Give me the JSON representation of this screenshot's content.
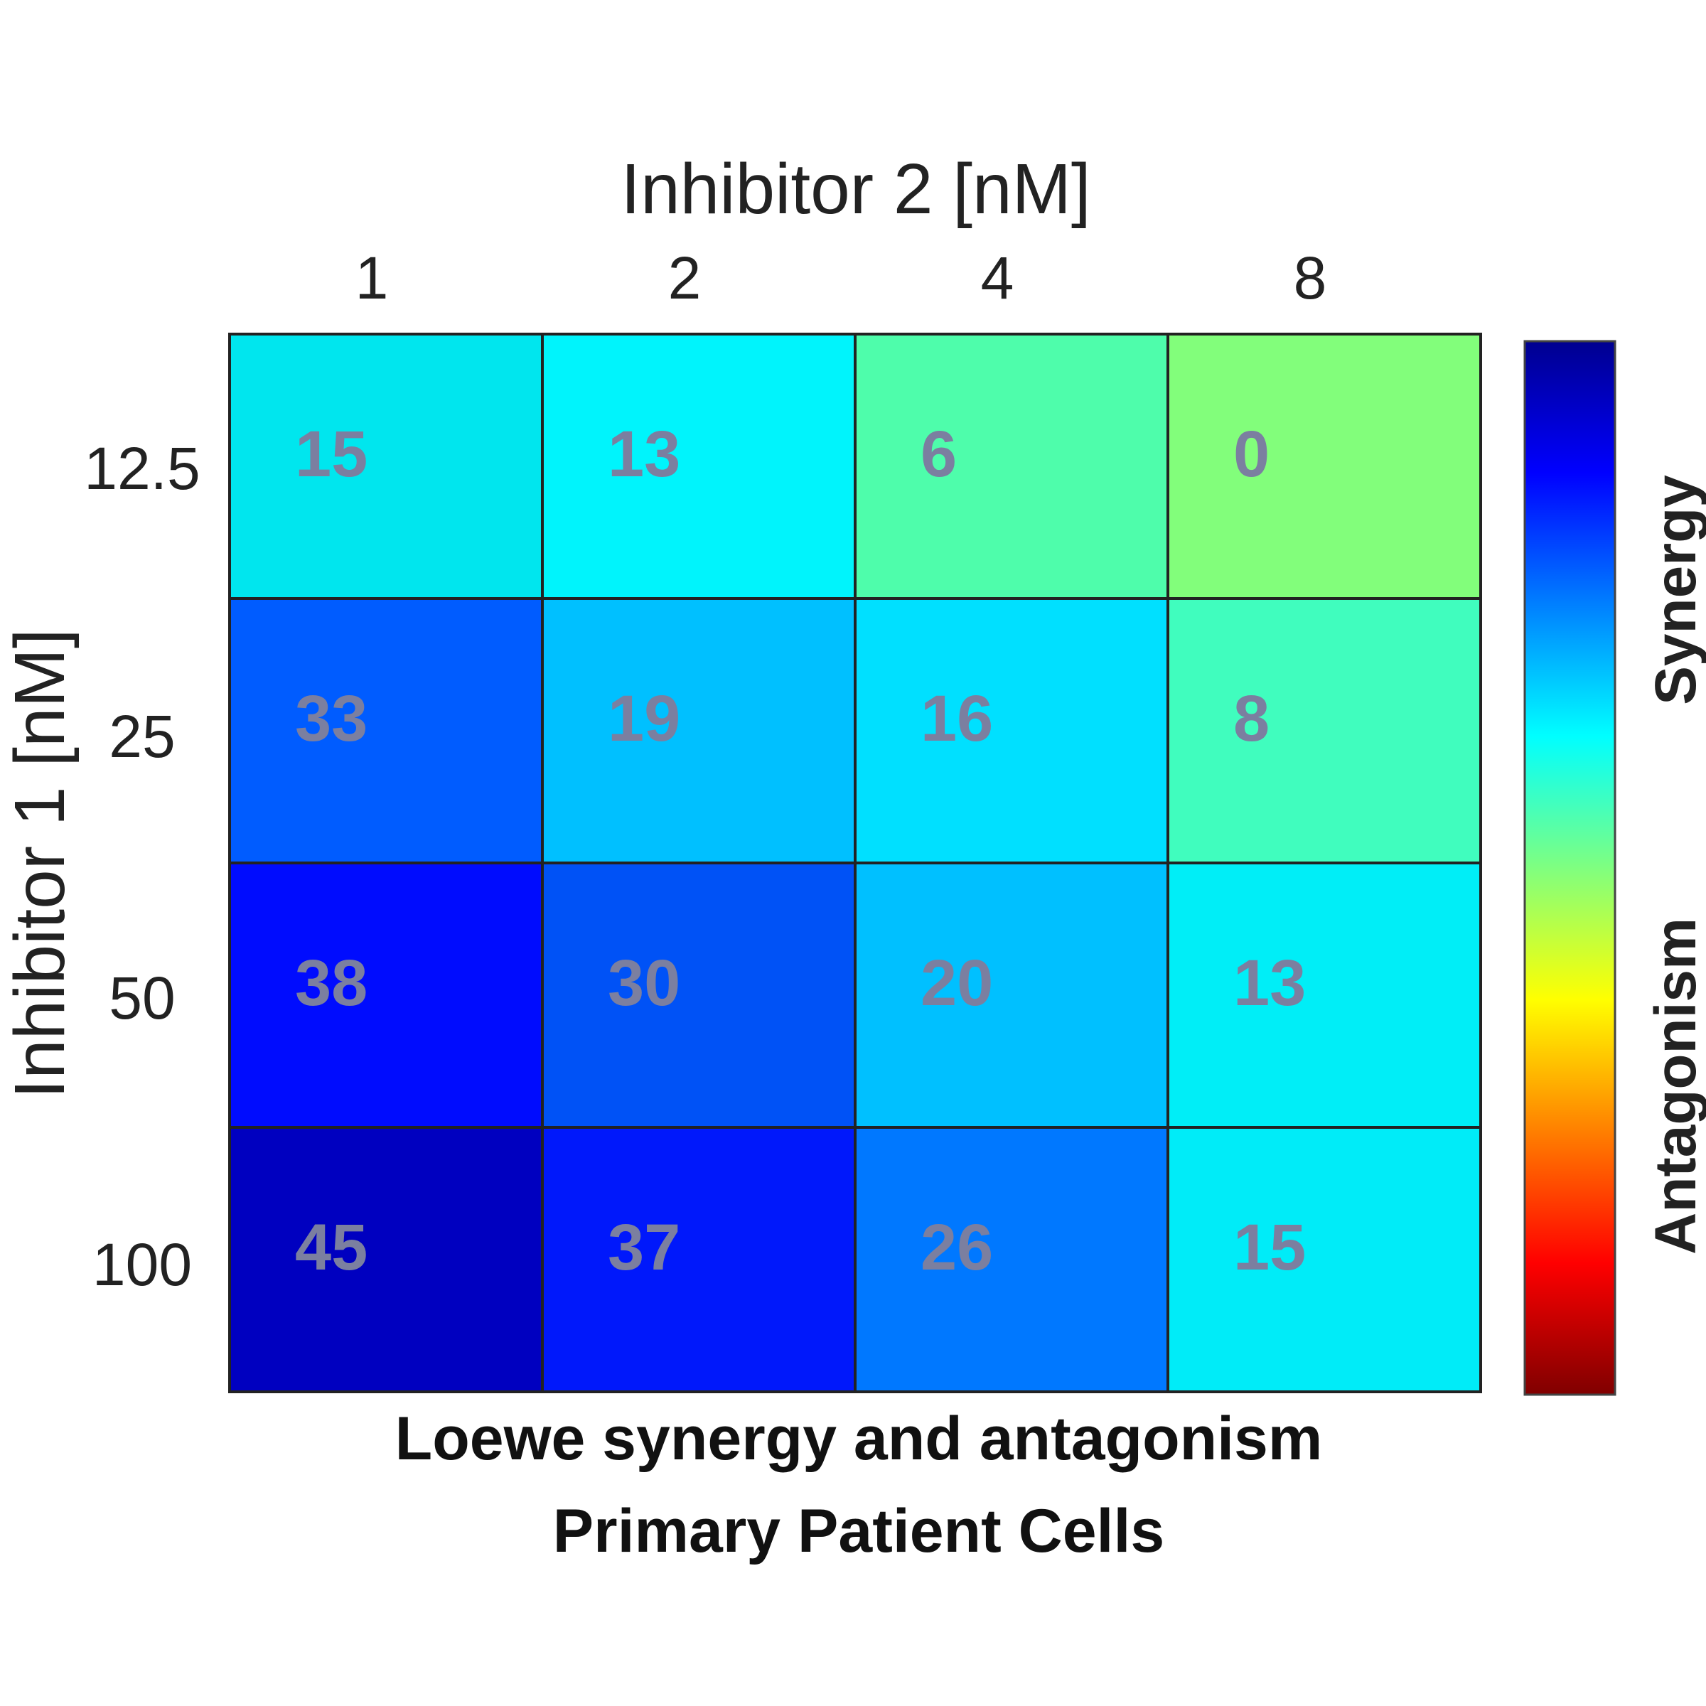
{
  "chart_data": {
    "type": "heatmap",
    "title": "",
    "xlabel": "Inhibitor 2 [nM]",
    "ylabel": "Inhibitor 1 [nM]",
    "x_categories": [
      "1",
      "2",
      "4",
      "8"
    ],
    "y_categories": [
      "12.5",
      "25",
      "50",
      "100"
    ],
    "values": [
      [
        15,
        13,
        6,
        0
      ],
      [
        33,
        19,
        16,
        8
      ],
      [
        38,
        30,
        20,
        13
      ],
      [
        45,
        37,
        26,
        15
      ]
    ],
    "colorscale": "jet (reversed)",
    "colorbar": {
      "position": "right",
      "labels": [
        "Synergy",
        "Antagonism"
      ]
    },
    "cell_colors": [
      [
        "#00e6ee",
        "#00f4fc",
        "#4efdab",
        "#82fe7b"
      ],
      [
        "#005cff",
        "#00c0ff",
        "#00e0ff",
        "#40fdbe"
      ],
      [
        "#000cfe",
        "#0052f6",
        "#00c0ff",
        "#00eef7"
      ],
      [
        "#0000c0",
        "#0018fb",
        "#0078ff",
        "#00ecf8"
      ]
    ],
    "caption": [
      "Loewe synergy and antagonism",
      "Primary Patient Cells"
    ]
  }
}
